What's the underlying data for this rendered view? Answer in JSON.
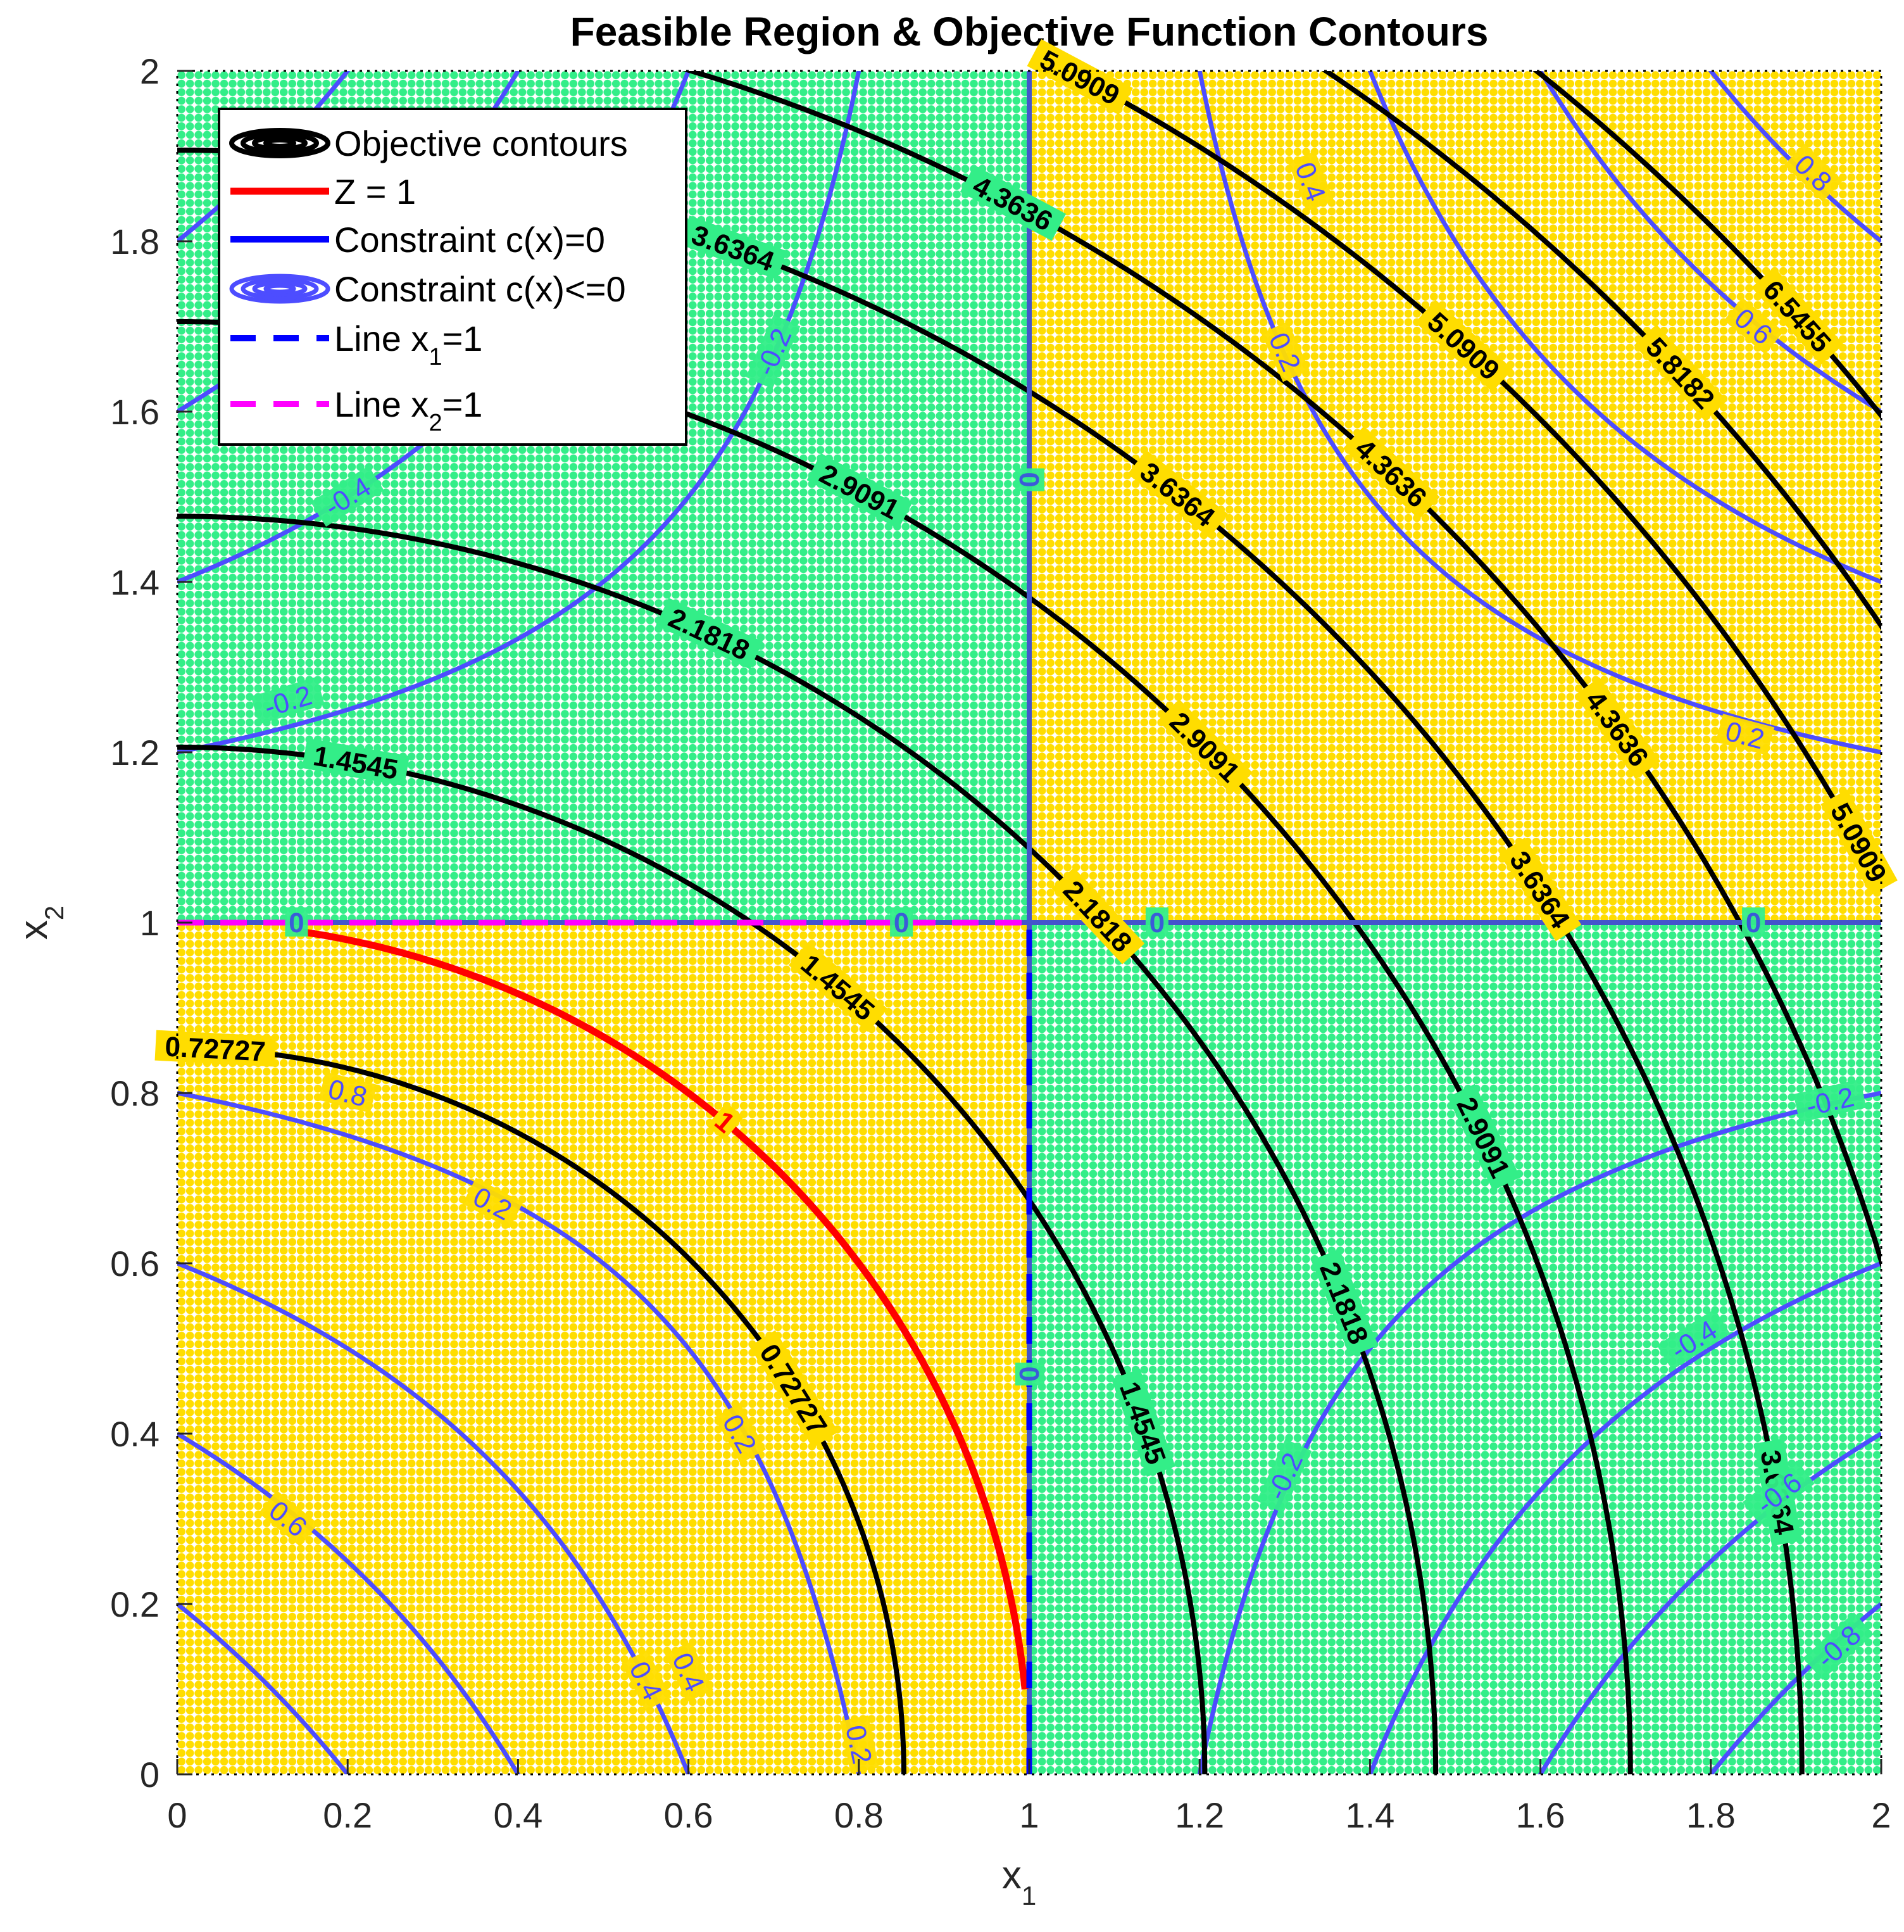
{
  "chart_data": {
    "type": "contour",
    "title": "Feasible Region & Objective Function Contours",
    "xlabel": "x",
    "xlabel_sub": "1",
    "ylabel": "x",
    "ylabel_sub": "2",
    "xlim": [
      0,
      2
    ],
    "ylim": [
      0,
      2
    ],
    "xticks": [
      "0",
      "0.2",
      "0.4",
      "0.6",
      "0.8",
      "1",
      "1.2",
      "1.4",
      "1.6",
      "1.8",
      "2"
    ],
    "yticks": [
      "0",
      "0.2",
      "0.4",
      "0.6",
      "0.8",
      "1",
      "1.2",
      "1.4",
      "1.6",
      "1.8",
      "2"
    ],
    "grid": false,
    "legend_position": "top-left",
    "legend": [
      {
        "label": "Objective contours",
        "style": "objective"
      },
      {
        "label": "Z = 1",
        "style": "z1"
      },
      {
        "label": "Constraint c(x)=0",
        "style": "c0"
      },
      {
        "label": "Constraint c(x)<=0",
        "style": "cle"
      },
      {
        "label": "Line x",
        "sub": "1",
        "suffix": "=1",
        "style": "vline"
      },
      {
        "label": "Line x",
        "sub": "2",
        "suffix": "=1",
        "style": "hline"
      }
    ],
    "objective_levels": [
      {
        "z": 0.72727,
        "label": "0.72727"
      },
      {
        "z": 1.4545,
        "label": "1.4545"
      },
      {
        "z": 2.1818,
        "label": "2.1818"
      },
      {
        "z": 2.9091,
        "label": "2.9091"
      },
      {
        "z": 3.6364,
        "label": "3.6364"
      },
      {
        "z": 4.3636,
        "label": "4.3636"
      },
      {
        "z": 5.0909,
        "label": "5.0909"
      },
      {
        "z": 5.8182,
        "label": "5.8182"
      },
      {
        "z": 6.5455,
        "label": "6.5455"
      }
    ],
    "constraint_levels": [
      -0.8,
      -0.6,
      -0.4,
      -0.2,
      0,
      0.2,
      0.4,
      0.6,
      0.8
    ],
    "z_level": {
      "z": 1,
      "label": "1"
    },
    "feasible_condition": "(x1 - 1)(x2 - 1) <= 0",
    "colors": {
      "feasible": "#33ee88",
      "infeasible": "#ffdd00",
      "objective": "#000000",
      "constraint": "#4d4dff",
      "constraint_zero": "#4455cc",
      "z1": "#ff0000",
      "vline": "#0000ff",
      "hline": "#ff00ff"
    }
  }
}
